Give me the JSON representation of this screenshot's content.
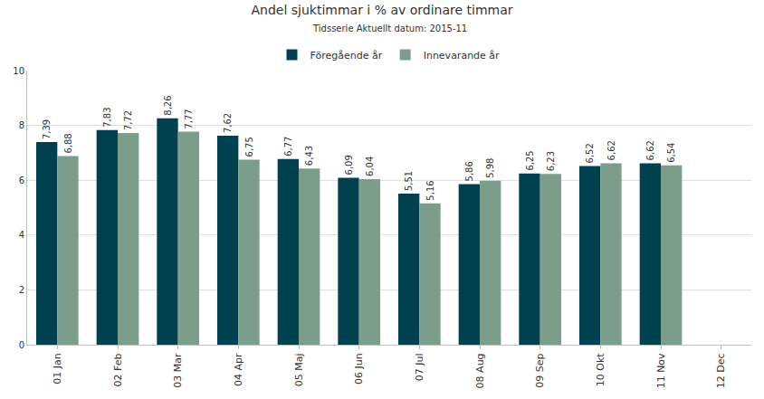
{
  "chart_data": {
    "type": "bar",
    "title": "Andel sjuktimmar i % av ordinare timmar",
    "subtitle": "Tidsserie Aktuellt datum: 2015-11",
    "categories": [
      "01 Jan",
      "02 Feb",
      "03 Mar",
      "04 Apr",
      "05 Maj",
      "06 Jun",
      "07 Jul",
      "08 Aug",
      "09 Sep",
      "10 Okt",
      "11 Nov",
      "12 Dec"
    ],
    "series": [
      {
        "name": "Föregående år",
        "color": "#00414f",
        "values": [
          7.39,
          7.83,
          8.26,
          7.62,
          6.77,
          6.09,
          5.51,
          5.86,
          6.25,
          6.52,
          6.62,
          null
        ],
        "value_labels": [
          "7,39",
          "7,83",
          "8,26",
          "7,62",
          "6,77",
          "6,09",
          "5,51",
          "5,86",
          "6,25",
          "6,52",
          "6,62",
          null
        ]
      },
      {
        "name": "Innevarande år",
        "color": "#7b9e8b",
        "values": [
          6.88,
          7.72,
          7.77,
          6.75,
          6.43,
          6.04,
          5.16,
          5.98,
          6.23,
          6.62,
          6.54,
          null
        ],
        "value_labels": [
          "6,88",
          "7,72",
          "7,77",
          "6,75",
          "6,43",
          "6,04",
          "5,16",
          "5,98",
          "6,23",
          "6,62",
          "6,54",
          null
        ]
      }
    ],
    "ylim": [
      0,
      10
    ],
    "yticks": [
      0,
      2,
      4,
      6,
      8,
      10
    ],
    "grid": true,
    "legend": "top",
    "data_labels": true
  }
}
